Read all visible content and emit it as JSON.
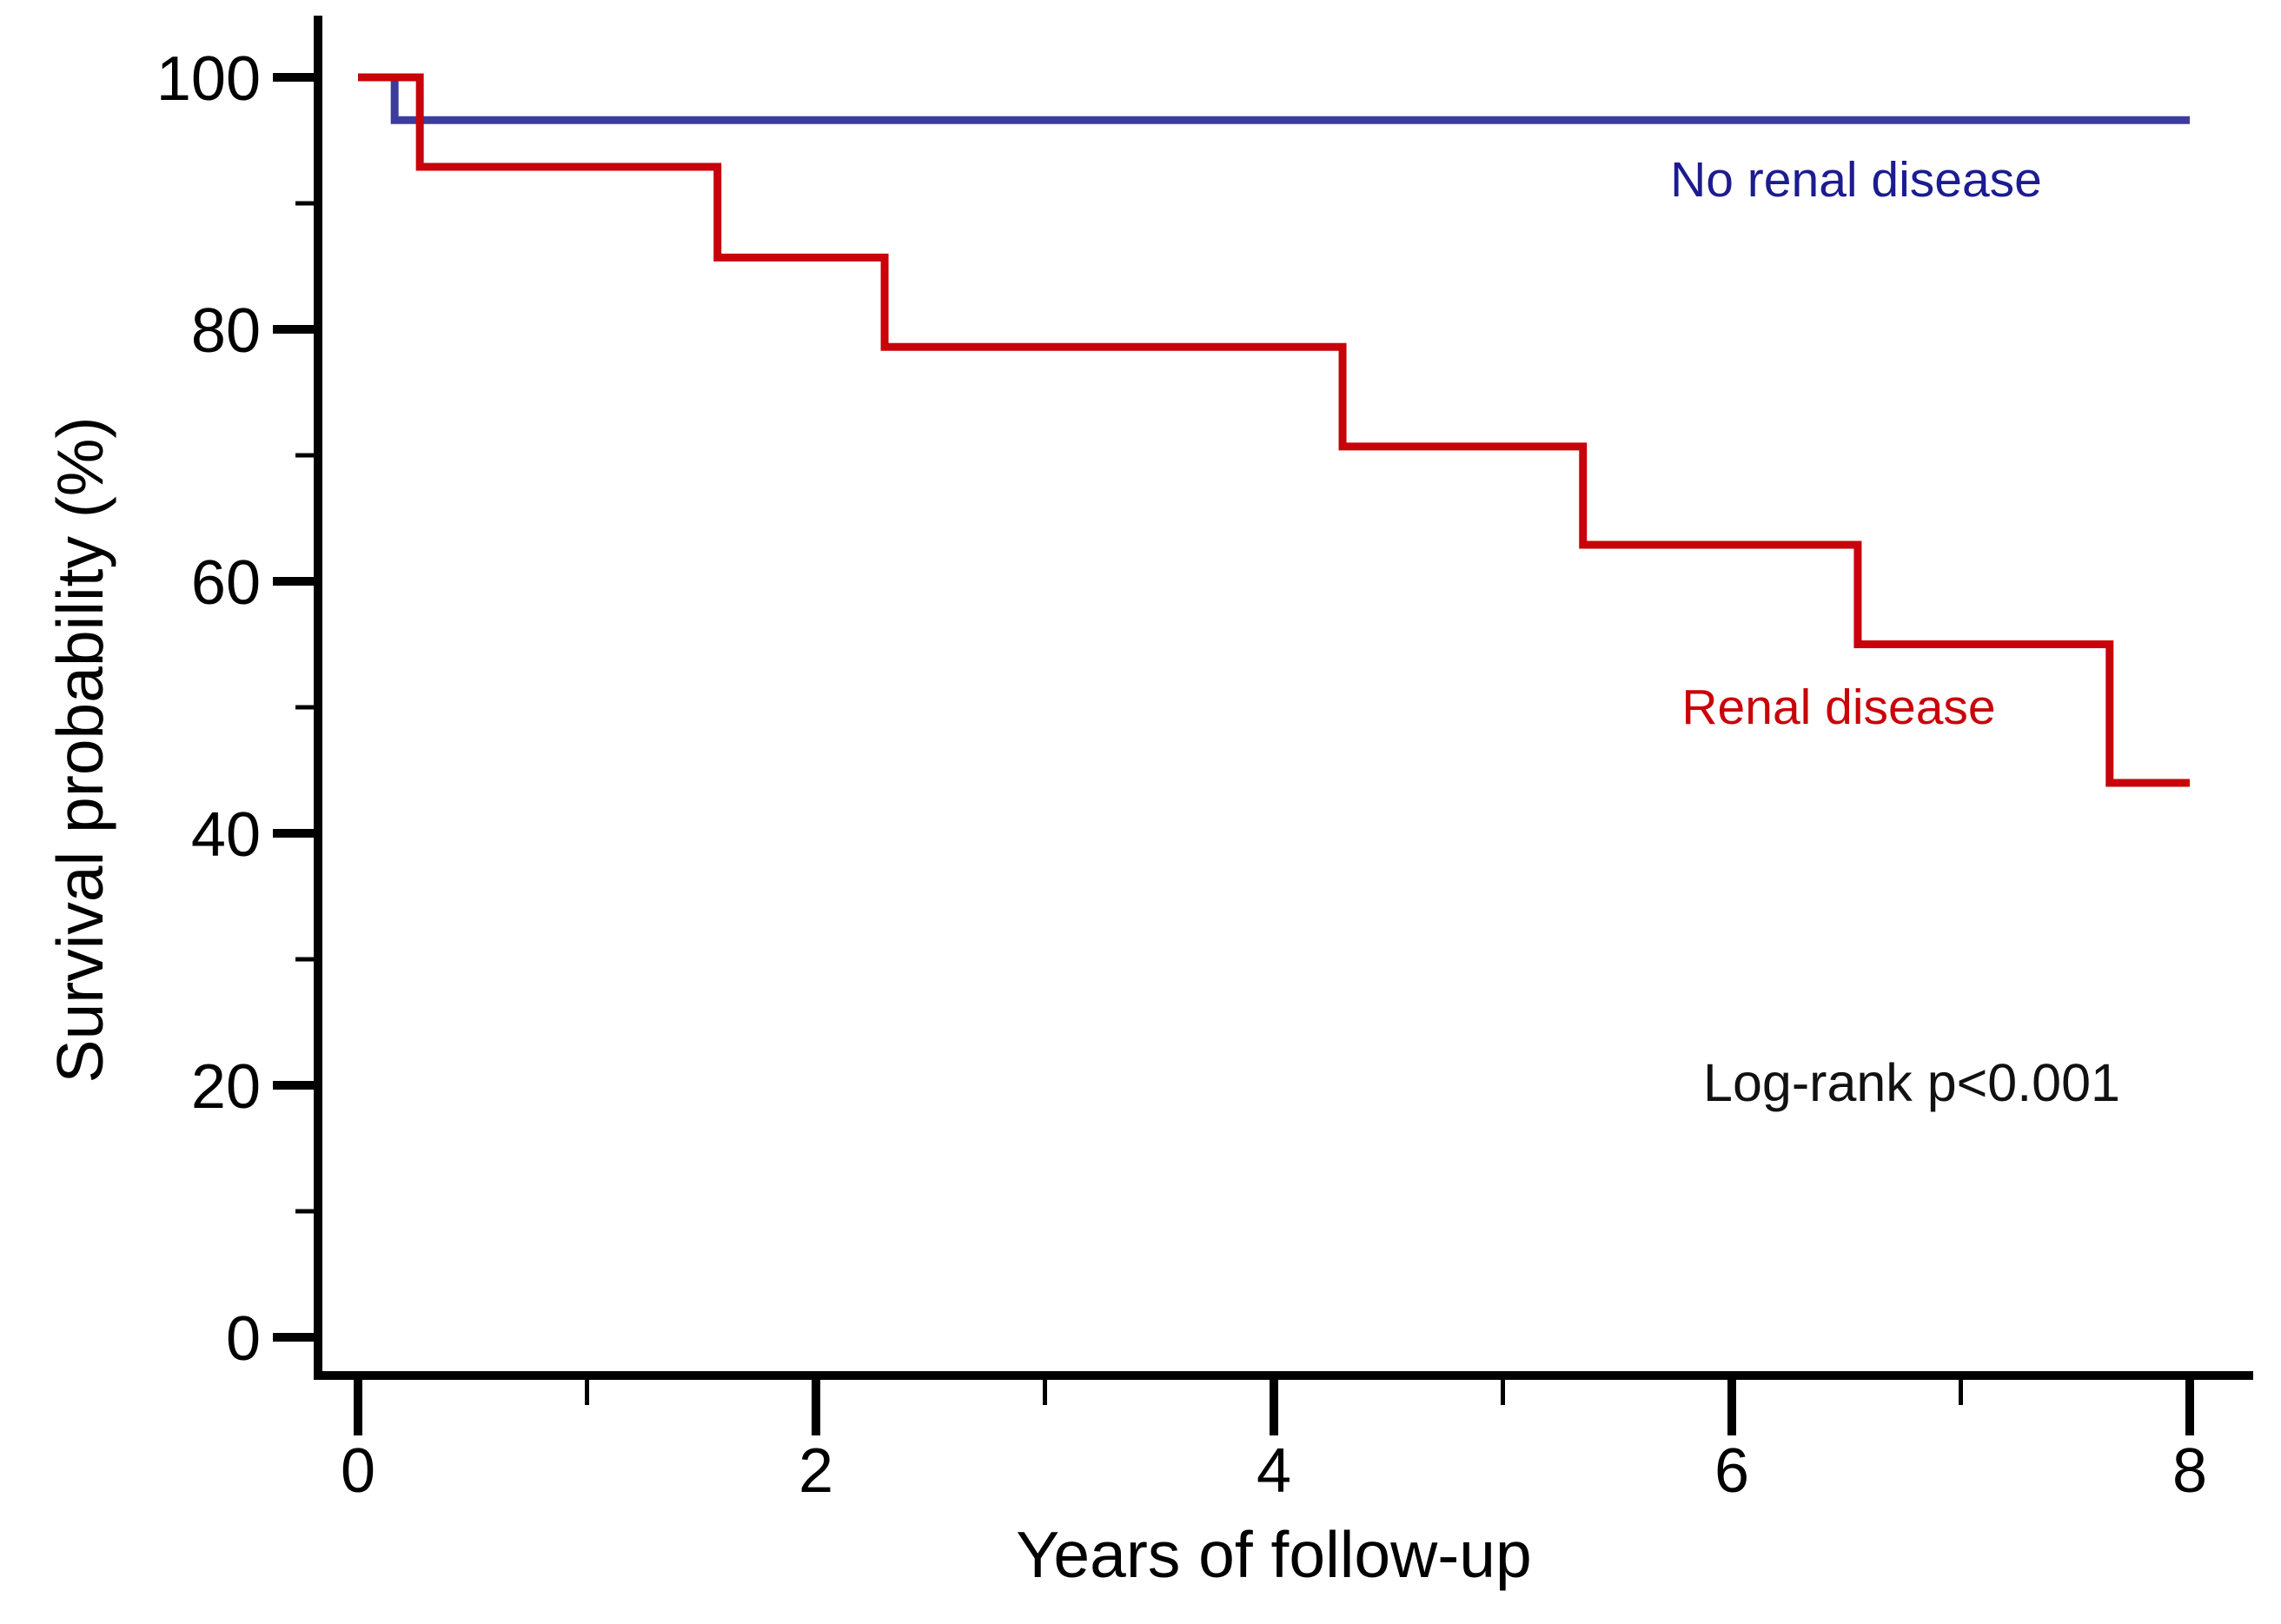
{
  "chart_data": {
    "type": "line",
    "subtype": "kaplan-meier-step-survival",
    "title": "",
    "xlabel": "Years of follow-up",
    "ylabel": "Survival probability (%)",
    "xlim": [
      0,
      8
    ],
    "ylim": [
      0,
      100
    ],
    "x_ticks_major": [
      0,
      2,
      4,
      6,
      8
    ],
    "x_ticks_minor": [
      1,
      3,
      5,
      7
    ],
    "y_ticks_major": [
      0,
      20,
      40,
      60,
      80,
      100
    ],
    "y_ticks_minor": [
      10,
      30,
      50,
      70,
      90
    ],
    "grid": false,
    "legend_position": "inline-labels",
    "annotation": "Log-rank p<0.001",
    "axis_color": "#000000",
    "background_color": "#ffffff",
    "series": [
      {
        "name": "No renal disease",
        "line_color": "#3c3c9e",
        "label_color": "#1c1c90",
        "steps": {
          "time": [
            0,
            0.16,
            8
          ],
          "survival": [
            100,
            96.6,
            96.6
          ]
        }
      },
      {
        "name": "Renal disease",
        "line_color": "#c9030a",
        "label_color": "#c9030a",
        "steps": {
          "time": [
            0,
            0.27,
            1.57,
            2.3,
            4.3,
            5.35,
            6.55,
            7.65,
            8
          ],
          "survival": [
            100,
            92.9,
            85.7,
            78.6,
            70.7,
            62.9,
            55.0,
            44.0,
            44.0
          ]
        }
      }
    ]
  }
}
